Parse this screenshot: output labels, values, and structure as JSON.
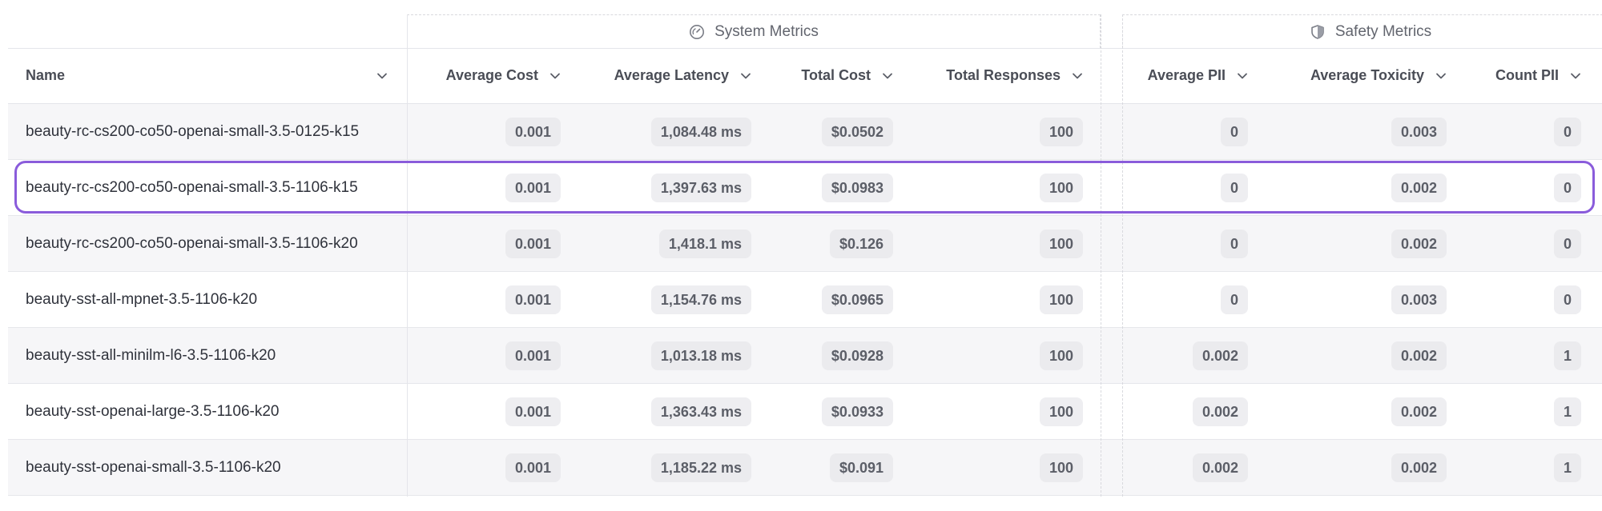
{
  "groups": {
    "system": {
      "label": "System Metrics",
      "icon": "gauge-icon"
    },
    "safety": {
      "label": "Safety Metrics",
      "icon": "shield-icon"
    }
  },
  "columns": {
    "name": "Name",
    "avg_cost": "Average Cost",
    "avg_latency": "Average Latency",
    "total_cost": "Total Cost",
    "total_responses": "Total Responses",
    "avg_pii": "Average PII",
    "avg_toxicity": "Average Toxicity",
    "count_pii": "Count PII"
  },
  "rows": [
    {
      "name": "beauty-rc-cs200-co50-openai-small-3.5-0125-k15",
      "avg_cost": "0.001",
      "avg_latency": "1,084.48 ms",
      "total_cost": "$0.0502",
      "total_responses": "100",
      "avg_pii": "0",
      "avg_toxicity": "0.003",
      "count_pii": "0"
    },
    {
      "name": "beauty-rc-cs200-co50-openai-small-3.5-1106-k15",
      "avg_cost": "0.001",
      "avg_latency": "1,397.63 ms",
      "total_cost": "$0.0983",
      "total_responses": "100",
      "avg_pii": "0",
      "avg_toxicity": "0.002",
      "count_pii": "0",
      "selected": true
    },
    {
      "name": "beauty-rc-cs200-co50-openai-small-3.5-1106-k20",
      "avg_cost": "0.001",
      "avg_latency": "1,418.1 ms",
      "total_cost": "$0.126",
      "total_responses": "100",
      "avg_pii": "0",
      "avg_toxicity": "0.002",
      "count_pii": "0"
    },
    {
      "name": "beauty-sst-all-mpnet-3.5-1106-k20",
      "avg_cost": "0.001",
      "avg_latency": "1,154.76 ms",
      "total_cost": "$0.0965",
      "total_responses": "100",
      "avg_pii": "0",
      "avg_toxicity": "0.003",
      "count_pii": "0"
    },
    {
      "name": "beauty-sst-all-minilm-l6-3.5-1106-k20",
      "avg_cost": "0.001",
      "avg_latency": "1,013.18 ms",
      "total_cost": "$0.0928",
      "total_responses": "100",
      "avg_pii": "0.002",
      "avg_toxicity": "0.002",
      "count_pii": "1"
    },
    {
      "name": "beauty-sst-openai-large-3.5-1106-k20",
      "avg_cost": "0.001",
      "avg_latency": "1,363.43 ms",
      "total_cost": "$0.0933",
      "total_responses": "100",
      "avg_pii": "0.002",
      "avg_toxicity": "0.002",
      "count_pii": "1"
    },
    {
      "name": "beauty-sst-openai-small-3.5-1106-k20",
      "avg_cost": "0.001",
      "avg_latency": "1,185.22 ms",
      "total_cost": "$0.091",
      "total_responses": "100",
      "avg_pii": "0.002",
      "avg_toxicity": "0.002",
      "count_pii": "1"
    }
  ],
  "colors": {
    "selection": "#8a5cdb",
    "alt_row": "#f6f6f8",
    "pill": "#eeeef1"
  }
}
